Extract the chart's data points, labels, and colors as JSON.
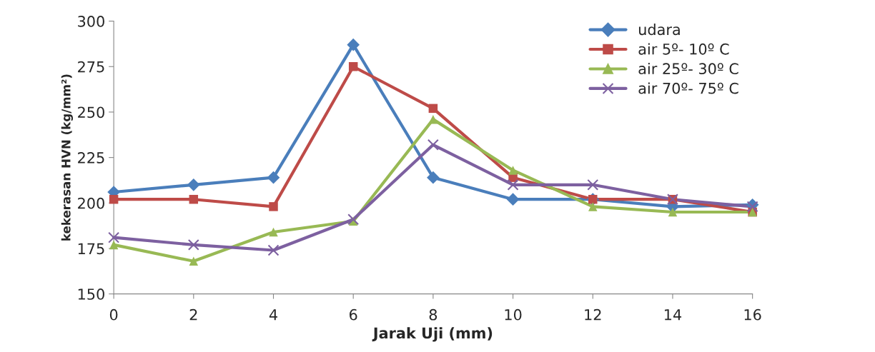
{
  "chart_data": {
    "type": "line",
    "xlabel": "Jarak Uji (mm)",
    "ylabel": "kekerasan HVN (kg/mm²)",
    "x": [
      0,
      2,
      4,
      6,
      8,
      10,
      12,
      14,
      16
    ],
    "xlim": [
      0,
      16
    ],
    "xticks": [
      0,
      2,
      4,
      6,
      8,
      10,
      12,
      14,
      16
    ],
    "ylim": [
      150,
      300
    ],
    "yticks": [
      150,
      175,
      200,
      225,
      250,
      275,
      300
    ],
    "grid": false,
    "legend": "top right",
    "line_style": "solid",
    "series": [
      {
        "name": "udara",
        "color": "#4a7ebb",
        "marker": "diamond",
        "values": [
          206,
          210,
          214,
          287,
          214,
          202,
          202,
          198,
          199
        ]
      },
      {
        "name": "air 5º- 10º C",
        "color": "#be4b48",
        "marker": "square",
        "values": [
          202,
          202,
          198,
          275,
          252,
          214,
          202,
          202,
          195
        ]
      },
      {
        "name": "air 25º- 30º C",
        "color": "#98b954",
        "marker": "triangle",
        "values": [
          177,
          168,
          184,
          190,
          246,
          218,
          198,
          195,
          195
        ]
      },
      {
        "name": "air 70º- 75º C",
        "color": "#7d60a0",
        "marker": "cross",
        "values": [
          181,
          177,
          174,
          191,
          232,
          210,
          210,
          202,
          198
        ]
      }
    ]
  }
}
